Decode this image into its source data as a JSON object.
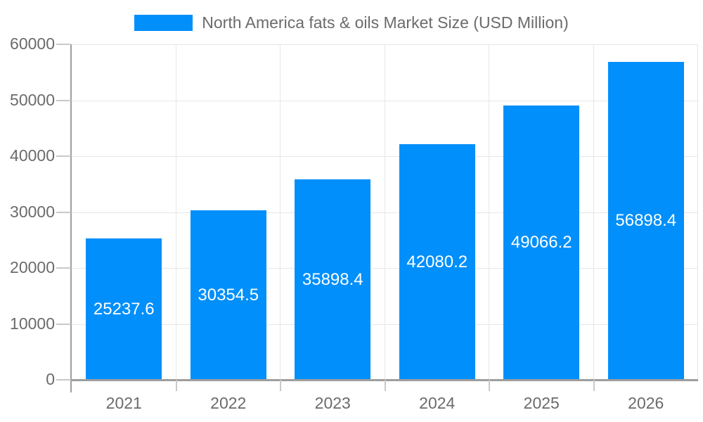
{
  "chart_data": {
    "type": "bar",
    "title": "North America fats & oils Market Size (USD Million)",
    "categories": [
      "2021",
      "2022",
      "2023",
      "2024",
      "2025",
      "2026"
    ],
    "values": [
      25237.6,
      30354.5,
      35898.4,
      42080.2,
      49066.2,
      56898.4
    ],
    "value_labels": [
      "25237.6",
      "30354.5",
      "35898.4",
      "42080.2",
      "49066.2",
      "56898.4"
    ],
    "xlabel": "",
    "ylabel": "",
    "ylim": [
      0,
      60000
    ],
    "y_tick_step": 10000,
    "y_tick_labels": [
      "0",
      "10000",
      "20000",
      "30000",
      "40000",
      "50000",
      "60000"
    ],
    "grid": "horizontal and vertical, behind bars",
    "legend_position": "top-center",
    "value_label_position": "centered inside bar",
    "colors": {
      "bar": "#008FFB",
      "grid": "#e7e7e7",
      "axis": "#9e9e9e",
      "tick": "#c9c9c9",
      "text": "#6b6b6b",
      "value_text": "#ffffff",
      "background": "#ffffff"
    }
  }
}
